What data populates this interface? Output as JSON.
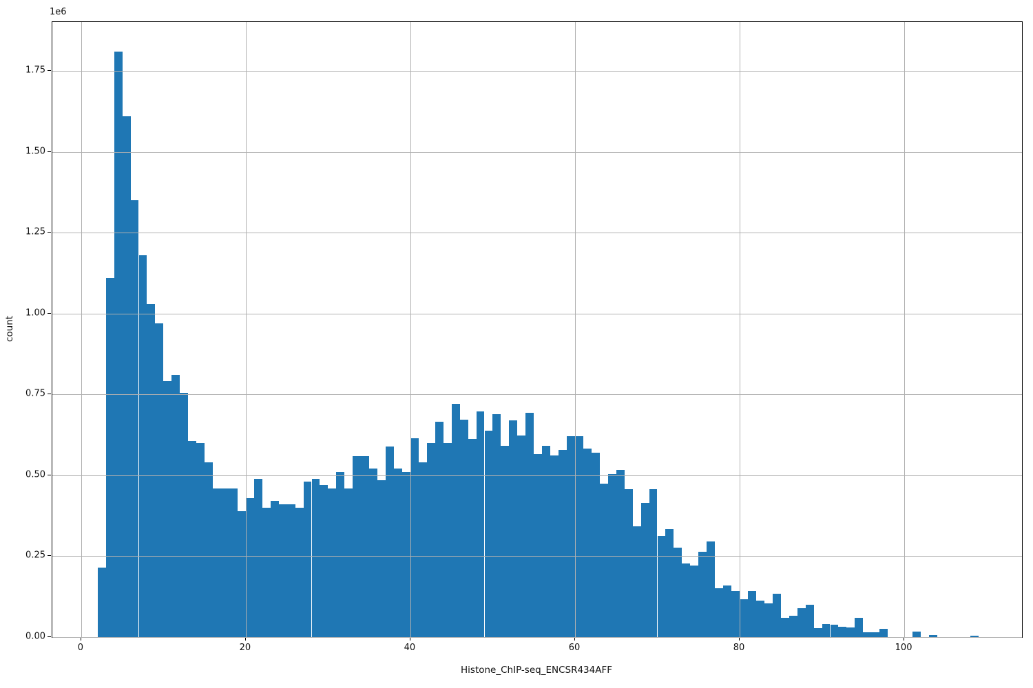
{
  "chart_data": {
    "type": "bar",
    "subtype": "histogram",
    "title": "",
    "xlabel": "Histone_ChIP-seq_ENCSR434AFF",
    "ylabel": "count",
    "y_offset_text": "1e6",
    "legend": "none",
    "grid": true,
    "bar_color": "#1f77b4",
    "grid_color": "#b0b0b0",
    "axis_color": "#000000",
    "background_color": "#ffffff",
    "bin_start": 2,
    "bin_width": 1,
    "xlim": [
      -3.5,
      114.3
    ],
    "ylim": [
      0,
      1901000
    ],
    "x_ticks": [
      0,
      20,
      40,
      60,
      80,
      100
    ],
    "x_tick_labels": [
      "0",
      "20",
      "40",
      "60",
      "80",
      "100"
    ],
    "y_ticks": [
      0,
      250000,
      500000,
      750000,
      1000000,
      1250000,
      1500000,
      1750000
    ],
    "y_tick_labels": [
      "0.00",
      "0.25",
      "0.50",
      "0.75",
      "1.00",
      "1.25",
      "1.50",
      "1.75"
    ],
    "counts": [
      215000,
      1110000,
      1810000,
      1610000,
      1350000,
      1180000,
      1030000,
      970000,
      790000,
      810000,
      755000,
      605000,
      600000,
      540000,
      460000,
      460000,
      460000,
      390000,
      430000,
      490000,
      400000,
      420000,
      410000,
      410000,
      400000,
      480000,
      490000,
      470000,
      460000,
      510000,
      460000,
      560000,
      560000,
      520000,
      485000,
      590000,
      520000,
      510000,
      615000,
      540000,
      600000,
      665000,
      600000,
      720000,
      672000,
      612000,
      697000,
      638000,
      690000,
      592000,
      670000,
      624000,
      693000,
      565000,
      592000,
      561000,
      578000,
      621000,
      621000,
      583000,
      569000,
      474000,
      505000,
      516000,
      457000,
      342000,
      415000,
      457000,
      312000,
      334000,
      276000,
      228000,
      221000,
      264000,
      295000,
      151000,
      160000,
      142000,
      118000,
      143000,
      113000,
      104000,
      135000,
      60000,
      66000,
      90000,
      99000,
      28000,
      40000,
      38000,
      32000,
      30000,
      60000,
      15000,
      15000,
      25000,
      0,
      0,
      0,
      16000,
      0,
      7000,
      0,
      0,
      0,
      0,
      5000
    ]
  }
}
